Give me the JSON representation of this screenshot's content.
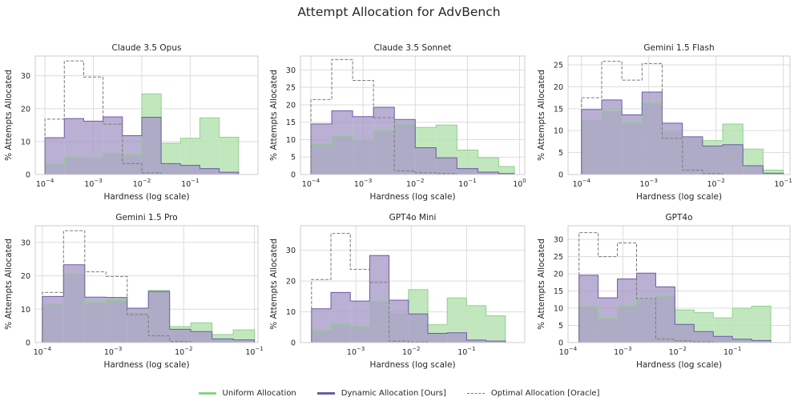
{
  "figure_title": "Attempt Allocation for AdvBench",
  "legend": {
    "uniform": "Uniform Allocation",
    "dynamic": "Dynamic Allocation [Ours]",
    "optimal": "Optimal Allocation [Oracle]"
  },
  "colors": {
    "uniform_fill": "#b7e3b3",
    "uniform_line": "#8fd08a",
    "dynamic_fill": "#a89cc8",
    "dynamic_line": "#6b5ca8",
    "optimal_line": "#7a7a7a",
    "grid": "#dcdcdc",
    "frame": "#cccccc"
  },
  "chart_data": [
    {
      "type": "histogram",
      "title": "Claude 3.5 Opus",
      "xlabel": "Hardness (log scale)",
      "ylabel": "% Attempts Allocated",
      "xscale": "log",
      "xlim_log10": [
        -4.2,
        0.4
      ],
      "ylim": [
        0,
        36
      ],
      "xticks": [
        {
          "v": -4,
          "label": "10⁻⁴"
        },
        {
          "v": -3,
          "label": "10⁻³"
        },
        {
          "v": -2,
          "label": "10⁻²"
        },
        {
          "v": -1,
          "label": "10⁻¹"
        }
      ],
      "yticks": [
        0,
        10,
        20,
        30
      ],
      "bin_edges_log10": [
        -4.0,
        -3.6,
        -3.2,
        -2.8,
        -2.4,
        -2.0,
        -1.6,
        -1.2,
        -0.8,
        -0.4,
        0.0
      ],
      "series": [
        {
          "name": "Uniform Allocation",
          "values": [
            3.2,
            5.3,
            5.2,
            6.5,
            6.0,
            24.5,
            9.5,
            11.0,
            17.2,
            11.3
          ]
        },
        {
          "name": "Dynamic Allocation [Ours]",
          "values": [
            11.2,
            17.0,
            16.2,
            17.5,
            11.8,
            17.4,
            3.3,
            2.8,
            1.8,
            0.7
          ]
        },
        {
          "name": "Optimal Allocation [Oracle]",
          "values": [
            16.8,
            34.5,
            29.6,
            15.3,
            3.3,
            0.5,
            0,
            0,
            0,
            0
          ]
        }
      ]
    },
    {
      "type": "histogram",
      "title": "Claude 3.5 Sonnet",
      "xlabel": "Hardness (log scale)",
      "ylabel": "% Attempts Allocated",
      "xscale": "log",
      "xlim_log10": [
        -4.2,
        0.1
      ],
      "ylim": [
        0,
        34
      ],
      "xticks": [
        {
          "v": -4,
          "label": "10⁻⁴"
        },
        {
          "v": -3,
          "label": "10⁻³"
        },
        {
          "v": -2,
          "label": "10⁻²"
        },
        {
          "v": -1,
          "label": "10⁻¹"
        },
        {
          "v": 0,
          "label": "10⁰"
        }
      ],
      "yticks": [
        0,
        5,
        10,
        15,
        20,
        25,
        30
      ],
      "bin_edges_log10": [
        -4.0,
        -3.6,
        -3.2,
        -2.8,
        -2.4,
        -2.0,
        -1.6,
        -1.2,
        -0.8,
        -0.4,
        -0.1
      ],
      "series": [
        {
          "name": "Uniform Allocation",
          "values": [
            8.7,
            11.0,
            10.0,
            12.6,
            14.5,
            13.5,
            14.2,
            7.0,
            4.8,
            2.3
          ]
        },
        {
          "name": "Dynamic Allocation [Ours]",
          "values": [
            14.5,
            18.3,
            16.6,
            19.3,
            15.8,
            7.7,
            4.8,
            1.7,
            0.7,
            0.3
          ]
        },
        {
          "name": "Optimal Allocation [Oracle]",
          "values": [
            21.5,
            33.0,
            27.0,
            16.3,
            1.0,
            0.5,
            0.3,
            0,
            0,
            0
          ]
        }
      ]
    },
    {
      "type": "histogram",
      "title": "Gemini 1.5 Flash",
      "xlabel": "Hardness (log scale)",
      "ylabel": "% Attempts Allocated",
      "xscale": "log",
      "xlim_log10": [
        -4.2,
        -0.9
      ],
      "ylim": [
        0,
        27
      ],
      "xticks": [
        {
          "v": -4,
          "label": "10⁻⁴"
        },
        {
          "v": -3,
          "label": "10⁻³"
        },
        {
          "v": -2,
          "label": "10⁻²"
        },
        {
          "v": -1,
          "label": "10⁻¹"
        }
      ],
      "yticks": [
        0,
        5,
        10,
        15,
        20,
        25
      ],
      "bin_edges_log10": [
        -4.0,
        -3.7,
        -3.4,
        -3.1,
        -2.8,
        -2.5,
        -2.2,
        -1.9,
        -1.6,
        -1.3,
        -1.0
      ],
      "series": [
        {
          "name": "Uniform Allocation",
          "values": [
            12.5,
            14.5,
            11.8,
            16.3,
            9.8,
            8.5,
            7.7,
            11.5,
            5.8,
            1.0
          ]
        },
        {
          "name": "Dynamic Allocation [Ours]",
          "values": [
            14.8,
            17.0,
            13.6,
            18.8,
            11.7,
            8.6,
            6.5,
            6.8,
            2.0,
            0.3
          ]
        },
        {
          "name": "Optimal Allocation [Oracle]",
          "values": [
            17.5,
            25.8,
            21.5,
            25.3,
            8.2,
            1.0,
            0.2,
            0,
            0,
            0
          ]
        }
      ]
    },
    {
      "type": "histogram",
      "title": "Gemini 1.5 Pro",
      "xlabel": "Hardness (log scale)",
      "ylabel": "% Attempts Allocated",
      "xscale": "log",
      "xlim_log10": [
        -4.1,
        -0.95
      ],
      "ylim": [
        0,
        35
      ],
      "xticks": [
        {
          "v": -4,
          "label": "10⁻⁴"
        },
        {
          "v": -3,
          "label": "10⁻³"
        },
        {
          "v": -2,
          "label": "10⁻²"
        },
        {
          "v": -1,
          "label": "10⁻¹"
        }
      ],
      "yticks": [
        0,
        10,
        20,
        30
      ],
      "bin_edges_log10": [
        -4.0,
        -3.7,
        -3.4,
        -3.1,
        -2.8,
        -2.5,
        -2.2,
        -1.9,
        -1.6,
        -1.3,
        -1.0
      ],
      "series": [
        {
          "name": "Uniform Allocation",
          "values": [
            11.6,
            20.6,
            12.0,
            12.6,
            9.3,
            15.6,
            4.8,
            5.9,
            2.4,
            3.8
          ]
        },
        {
          "name": "Dynamic Allocation [Ours]",
          "values": [
            13.8,
            23.3,
            13.6,
            13.5,
            10.3,
            15.3,
            4.0,
            3.3,
            1.1,
            0.8
          ]
        },
        {
          "name": "Optimal Allocation [Oracle]",
          "values": [
            15.0,
            33.5,
            21.2,
            19.8,
            8.4,
            2.0,
            0.3,
            0,
            0,
            0
          ]
        }
      ]
    },
    {
      "type": "histogram",
      "title": "GPT4o Mini",
      "xlabel": "Hardness (log scale)",
      "ylabel": "% Attempts Allocated",
      "xscale": "log",
      "xlim_log10": [
        -4.0,
        0.05
      ],
      "ylim": [
        0,
        38
      ],
      "xticks": [
        {
          "v": -3,
          "label": "10⁻³"
        },
        {
          "v": -2,
          "label": "10⁻²"
        },
        {
          "v": -1,
          "label": "10⁻¹"
        }
      ],
      "yticks": [
        0,
        10,
        20,
        30
      ],
      "bin_edges_log10": [
        -3.8,
        -3.45,
        -3.1,
        -2.75,
        -2.4,
        -2.05,
        -1.7,
        -1.35,
        -1.0,
        -0.65,
        -0.3
      ],
      "series": [
        {
          "name": "Uniform Allocation",
          "values": [
            4.0,
            6.0,
            5.3,
            13.5,
            9.5,
            17.2,
            5.8,
            14.5,
            12.0,
            8.7
          ]
        },
        {
          "name": "Dynamic Allocation [Ours]",
          "values": [
            11.0,
            16.3,
            13.5,
            28.3,
            13.8,
            9.3,
            3.0,
            3.2,
            0.8,
            0.5
          ]
        },
        {
          "name": "Optimal Allocation [Oracle]",
          "values": [
            20.5,
            35.5,
            23.8,
            19.6,
            0.5,
            0.2,
            0,
            0,
            0,
            0
          ]
        }
      ]
    },
    {
      "type": "histogram",
      "title": "GPT4o",
      "xlabel": "Hardness (log scale)",
      "ylabel": "% Attempts Allocated",
      "xscale": "log",
      "xlim_log10": [
        -4.0,
        0.05
      ],
      "ylim": [
        0,
        34
      ],
      "xticks": [
        {
          "v": -4,
          "label": "10⁻⁴"
        },
        {
          "v": -3,
          "label": "10⁻³"
        },
        {
          "v": -2,
          "label": "10⁻²"
        },
        {
          "v": -1,
          "label": "10⁻¹"
        }
      ],
      "yticks": [
        0,
        5,
        10,
        15,
        20,
        25,
        30
      ],
      "bin_edges_log10": [
        -3.8,
        -3.45,
        -3.1,
        -2.75,
        -2.4,
        -2.05,
        -1.7,
        -1.35,
        -1.0,
        -0.65,
        -0.3
      ],
      "series": [
        {
          "name": "Uniform Allocation",
          "values": [
            10.5,
            7.0,
            10.6,
            12.5,
            13.5,
            9.5,
            8.7,
            7.2,
            10.0,
            10.6
          ]
        },
        {
          "name": "Dynamic Allocation [Ours]",
          "values": [
            19.6,
            13.0,
            18.5,
            20.2,
            16.2,
            5.3,
            3.2,
            1.8,
            1.0,
            0.6
          ]
        },
        {
          "name": "Optimal Allocation [Oracle]",
          "values": [
            32.0,
            25.0,
            29.0,
            12.8,
            1.0,
            0.5,
            0.2,
            0,
            0,
            0
          ]
        }
      ]
    }
  ]
}
